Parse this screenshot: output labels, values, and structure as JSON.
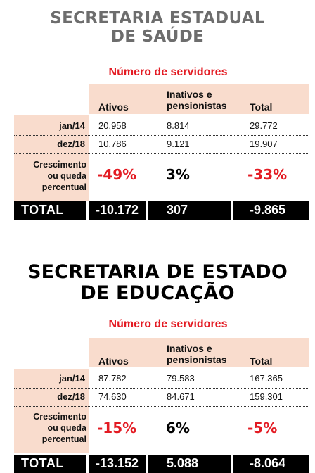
{
  "panels": [
    {
      "title_line1": "SECRETARIA ESTADUAL",
      "title_line2": "DE SAÚDE",
      "subtitle": "Número de servidores",
      "columns": {
        "ativos": "Ativos",
        "inativos_line1": "Inativos e",
        "inativos_line2": "pensionistas",
        "total": "Total"
      },
      "rows": [
        {
          "label": "jan/14",
          "ativos": "20.958",
          "inativos": "8.814",
          "total": "29.772"
        },
        {
          "label": "dez/18",
          "ativos": "10.786",
          "inativos": "9.121",
          "total": "19.907"
        }
      ],
      "growth_label_line1": "Crescimento",
      "growth_label_line2": "ou queda",
      "growth_label_line3": "percentual",
      "growth": {
        "ativos": "-49%",
        "inativos": "3%",
        "total": "-33%"
      },
      "total_label": "TOTAL",
      "totals": {
        "ativos": "-10.172",
        "inativos": "307",
        "total": "-9.865"
      }
    },
    {
      "title_line1": "SECRETARIA DE ESTADO",
      "title_line2": "DE EDUCAÇÃO",
      "subtitle": "Número de servidores",
      "columns": {
        "ativos": "Ativos",
        "inativos_line1": "Inativos e",
        "inativos_line2": "pensionistas",
        "total": "Total"
      },
      "rows": [
        {
          "label": "jan/14",
          "ativos": "87.782",
          "inativos": "79.583",
          "total": "167.365"
        },
        {
          "label": "dez/18",
          "ativos": "74.630",
          "inativos": "84.671",
          "total": "159.301"
        }
      ],
      "growth_label_line1": "Crescimento",
      "growth_label_line2": "ou queda",
      "growth_label_line3": "percentual",
      "growth": {
        "ativos": "-15%",
        "inativos": "6%",
        "total": "-5%"
      },
      "total_label": "TOTAL",
      "totals": {
        "ativos": "-13.152",
        "inativos": "5.088",
        "total": "-8.064"
      }
    }
  ],
  "colors": {
    "accent_red": "#e31b23",
    "shade": "#f9dccd",
    "title_gray": "#6d6d6d",
    "bar_black": "#000000"
  }
}
